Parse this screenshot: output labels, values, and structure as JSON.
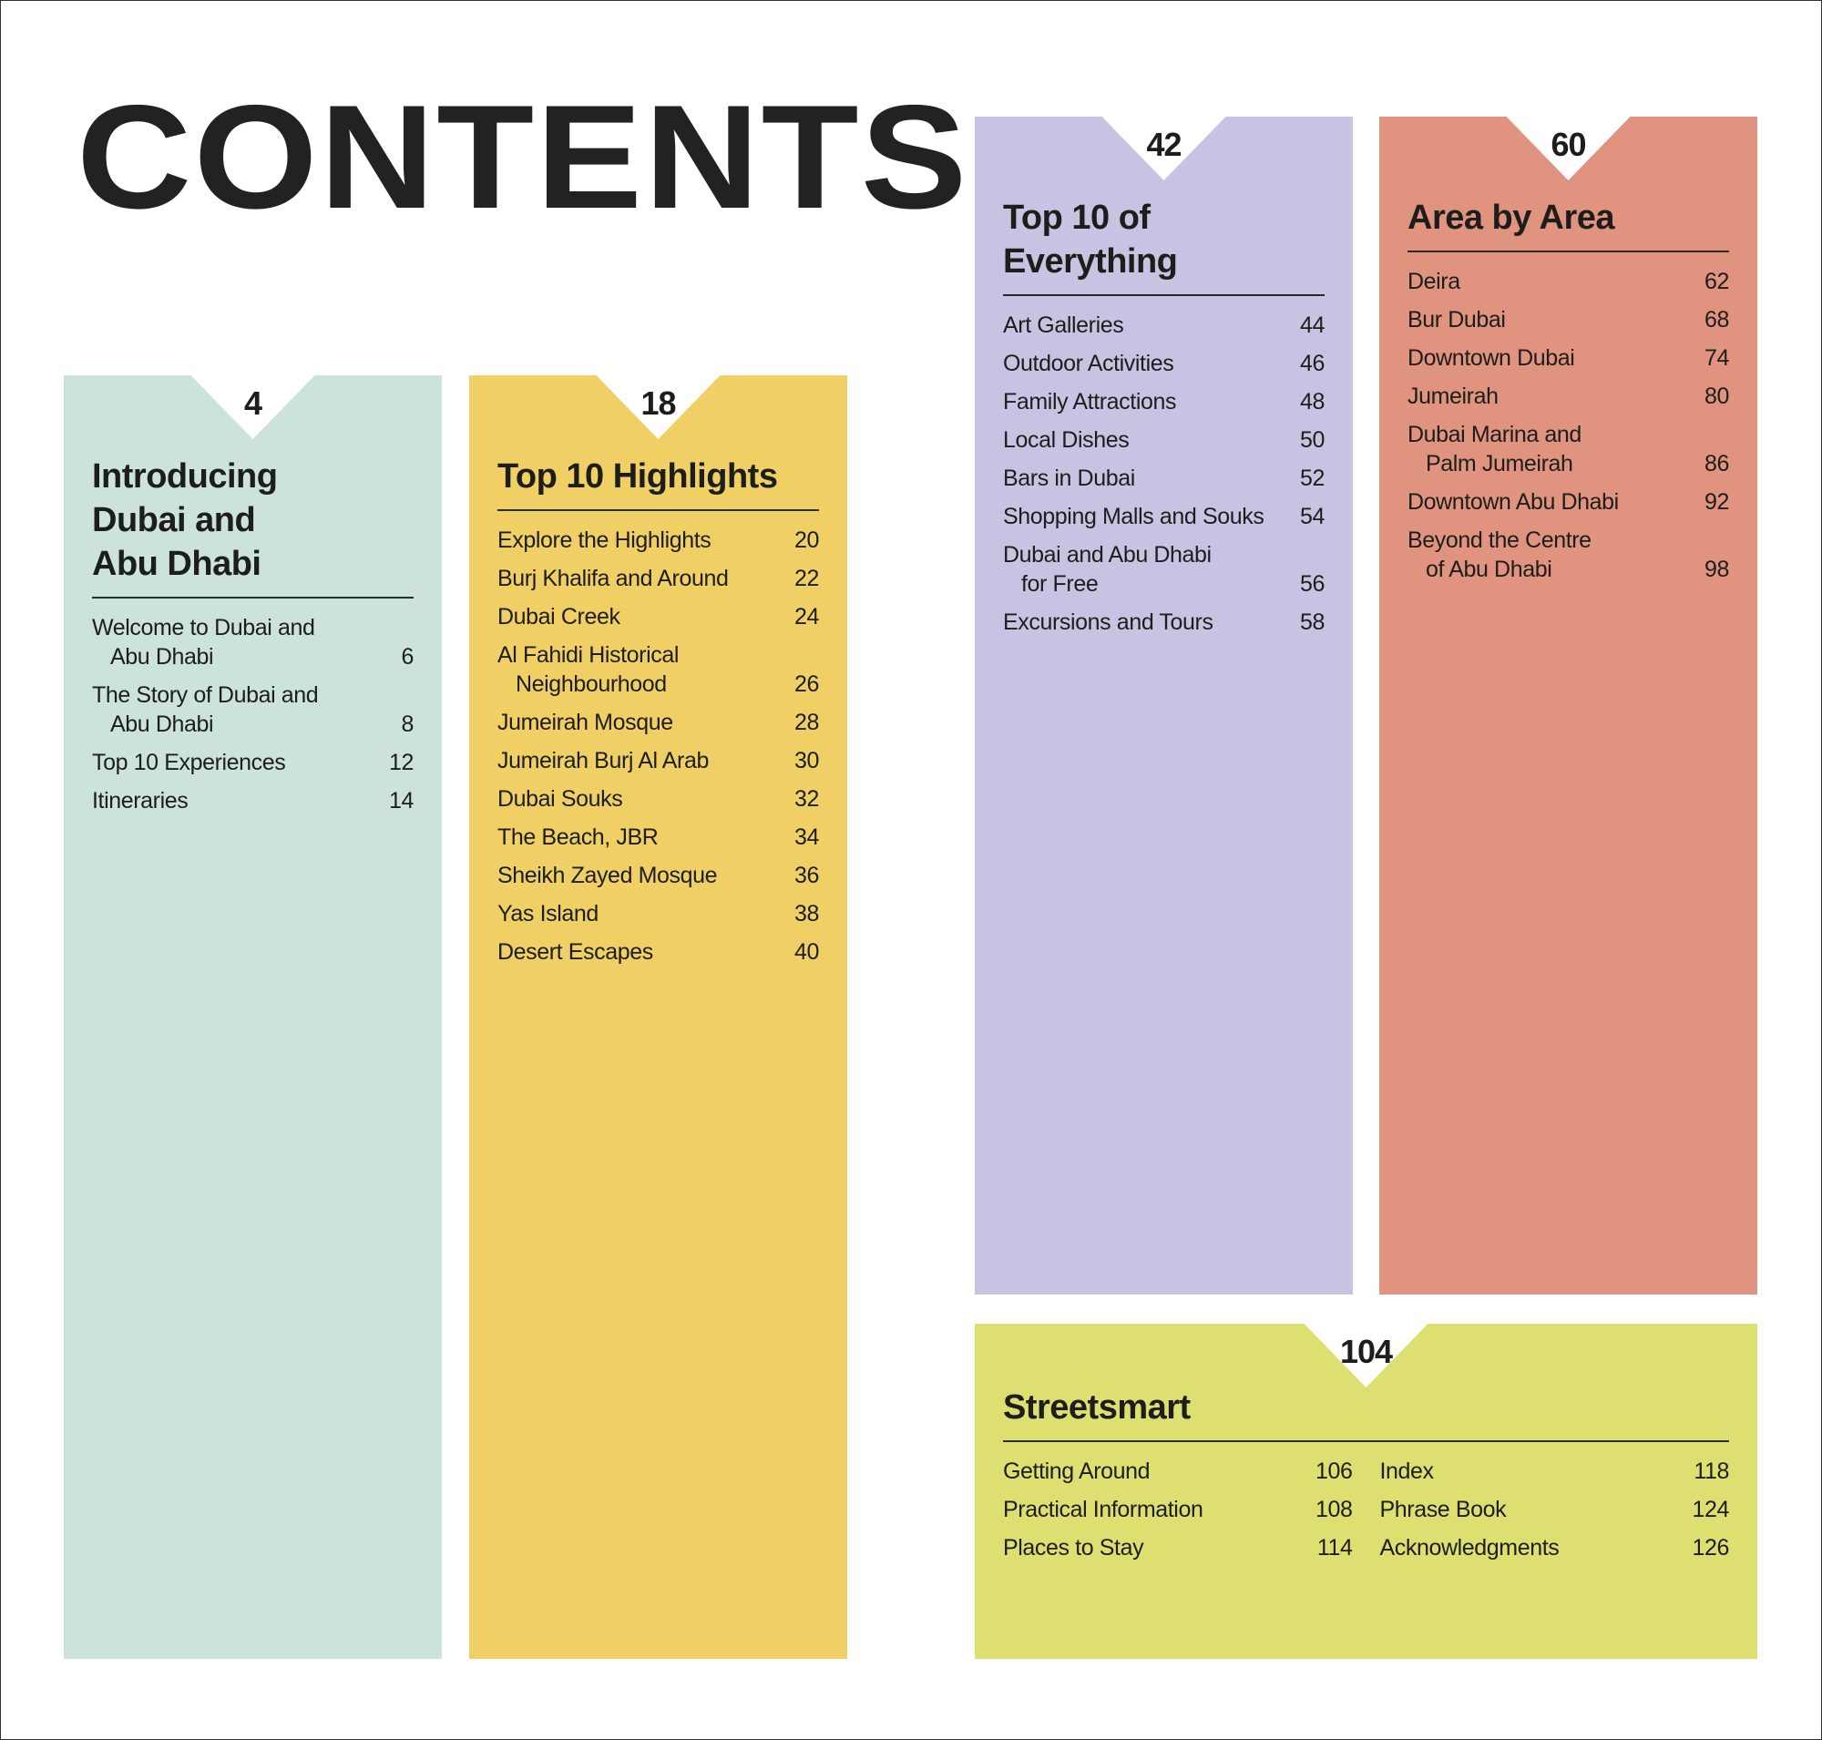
{
  "title": "CONTENTS",
  "colors": {
    "mint": "#cce3d9",
    "yellow": "#f0d064",
    "lavender": "#c8c3e2",
    "salmon": "#e0937f",
    "lime": "#dde070",
    "text": "#1d1d1b"
  },
  "sections": [
    {
      "id": "introducing",
      "page": "4",
      "heading": "Introducing Dubai and Abu Dhabi",
      "color": "#cce3d9",
      "items": [
        {
          "lines": [
            "Welcome to Dubai and",
            "Abu Dhabi"
          ],
          "page": "6"
        },
        {
          "lines": [
            "The Story of Dubai and",
            "Abu Dhabi"
          ],
          "page": "8"
        },
        {
          "lines": [
            "Top 10 Experiences"
          ],
          "page": "12"
        },
        {
          "lines": [
            "Itineraries"
          ],
          "page": "14"
        }
      ]
    },
    {
      "id": "top10-highlights",
      "page": "18",
      "heading": "Top 10 Highlights",
      "color": "#f0d064",
      "items": [
        {
          "lines": [
            "Explore the Highlights"
          ],
          "page": "20"
        },
        {
          "lines": [
            "Burj Khalifa and Around"
          ],
          "page": "22"
        },
        {
          "lines": [
            "Dubai Creek"
          ],
          "page": "24"
        },
        {
          "lines": [
            "Al Fahidi Historical",
            "Neighbourhood"
          ],
          "page": "26"
        },
        {
          "lines": [
            "Jumeirah Mosque"
          ],
          "page": "28"
        },
        {
          "lines": [
            "Jumeirah Burj Al Arab"
          ],
          "page": "30"
        },
        {
          "lines": [
            "Dubai Souks"
          ],
          "page": "32"
        },
        {
          "lines": [
            "The Beach, JBR"
          ],
          "page": "34"
        },
        {
          "lines": [
            "Sheikh Zayed Mosque"
          ],
          "page": "36"
        },
        {
          "lines": [
            "Yas Island"
          ],
          "page": "38"
        },
        {
          "lines": [
            "Desert Escapes"
          ],
          "page": "40"
        }
      ]
    },
    {
      "id": "top10-everything",
      "page": "42",
      "heading": "Top 10 of Everything",
      "color": "#c8c3e2",
      "items": [
        {
          "lines": [
            "Art Galleries"
          ],
          "page": "44"
        },
        {
          "lines": [
            "Outdoor Activities"
          ],
          "page": "46"
        },
        {
          "lines": [
            "Family Attractions"
          ],
          "page": "48"
        },
        {
          "lines": [
            "Local Dishes"
          ],
          "page": "50"
        },
        {
          "lines": [
            "Bars in Dubai"
          ],
          "page": "52"
        },
        {
          "lines": [
            "Shopping Malls and Souks"
          ],
          "page": "54"
        },
        {
          "lines": [
            "Dubai and Abu Dhabi",
            "for Free"
          ],
          "page": "56"
        },
        {
          "lines": [
            "Excursions and Tours"
          ],
          "page": "58"
        }
      ]
    },
    {
      "id": "area-by-area",
      "page": "60",
      "heading": "Area by Area",
      "color": "#e0937f",
      "items": [
        {
          "lines": [
            "Deira"
          ],
          "page": "62"
        },
        {
          "lines": [
            "Bur Dubai"
          ],
          "page": "68"
        },
        {
          "lines": [
            "Downtown Dubai"
          ],
          "page": "74"
        },
        {
          "lines": [
            "Jumeirah"
          ],
          "page": "80"
        },
        {
          "lines": [
            "Dubai Marina and",
            "Palm Jumeirah"
          ],
          "page": "86"
        },
        {
          "lines": [
            "Downtown Abu Dhabi"
          ],
          "page": "92"
        },
        {
          "lines": [
            "Beyond the Centre",
            "of Abu Dhabi"
          ],
          "page": "98"
        }
      ]
    },
    {
      "id": "streetsmart",
      "page": "104",
      "heading": "Streetsmart",
      "color": "#dde070",
      "columns": [
        [
          {
            "lines": [
              "Getting Around"
            ],
            "page": "106"
          },
          {
            "lines": [
              "Practical Information"
            ],
            "page": "108"
          },
          {
            "lines": [
              "Places to Stay"
            ],
            "page": "114"
          }
        ],
        [
          {
            "lines": [
              "Index"
            ],
            "page": "118"
          },
          {
            "lines": [
              "Phrase Book"
            ],
            "page": "124"
          },
          {
            "lines": [
              "Acknowledgments"
            ],
            "page": "126"
          }
        ]
      ]
    }
  ]
}
